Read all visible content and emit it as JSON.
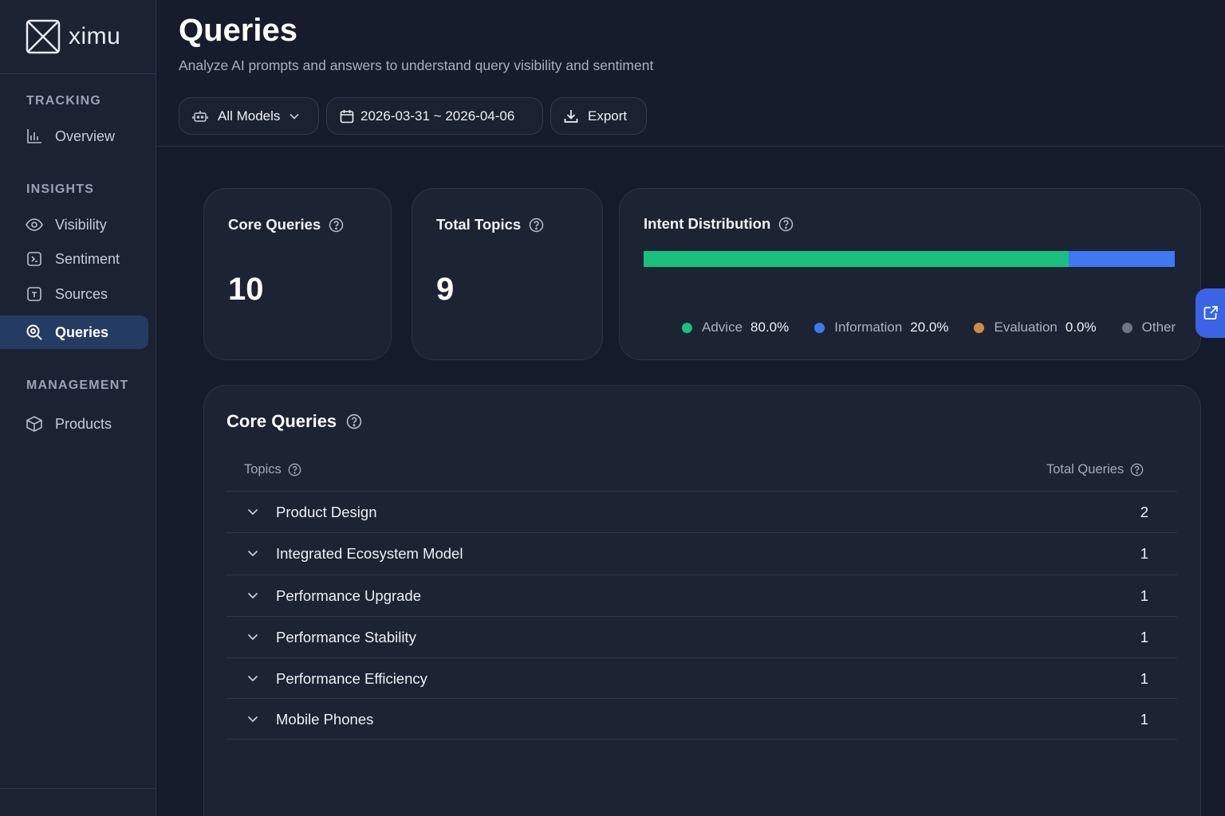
{
  "brand": {
    "name": "ximu"
  },
  "sidebar": {
    "sections": [
      {
        "label": "TRACKING"
      },
      {
        "label": "INSIGHTS"
      },
      {
        "label": "MANAGEMENT"
      }
    ],
    "items": [
      {
        "label": "Overview",
        "icon": "bar-chart-icon"
      },
      {
        "label": "Visibility",
        "icon": "eye-icon"
      },
      {
        "label": "Sentiment",
        "icon": "sentiment-icon"
      },
      {
        "label": "Sources",
        "icon": "sources-icon"
      },
      {
        "label": "Queries",
        "icon": "search-icon",
        "active": true
      },
      {
        "label": "Products",
        "icon": "box-icon"
      }
    ]
  },
  "header": {
    "title": "Queries",
    "subtitle": "Analyze AI prompts and answers to understand query visibility and sentiment",
    "model_filter": "All Models",
    "date_range": "2026-03-31 ~ 2026-04-06",
    "export_label": "Export"
  },
  "stats": {
    "core_queries": {
      "label": "Core Queries",
      "value": "10"
    },
    "total_topics": {
      "label": "Total Topics",
      "value": "9"
    }
  },
  "intent": {
    "title": "Intent Distribution",
    "segments": [
      {
        "name": "Advice",
        "value": "80.0%",
        "fraction": 0.8,
        "color": "#19c07e"
      },
      {
        "name": "Information",
        "value": "20.0%",
        "fraction": 0.2,
        "color": "#3f78f2"
      },
      {
        "name": "Evaluation",
        "value": "0.0%",
        "fraction": 0.0,
        "color": "#d18a45"
      },
      {
        "name": "Other",
        "value": "",
        "fraction": 0.0,
        "color": "#6e7686"
      }
    ]
  },
  "table": {
    "title": "Core Queries",
    "col_topics": "Topics",
    "col_total": "Total Queries",
    "rows": [
      {
        "topic": "Product Design",
        "count": "2"
      },
      {
        "topic": "Integrated Ecosystem Model",
        "count": "1"
      },
      {
        "topic": "Performance Upgrade",
        "count": "1"
      },
      {
        "topic": "Performance Stability",
        "count": "1"
      },
      {
        "topic": "Performance Efficiency",
        "count": "1"
      },
      {
        "topic": "Mobile Phones",
        "count": "1"
      }
    ]
  },
  "colors": {
    "accent": "#3b63e6",
    "active_nav": "#243b63",
    "background": "#151b2a"
  }
}
